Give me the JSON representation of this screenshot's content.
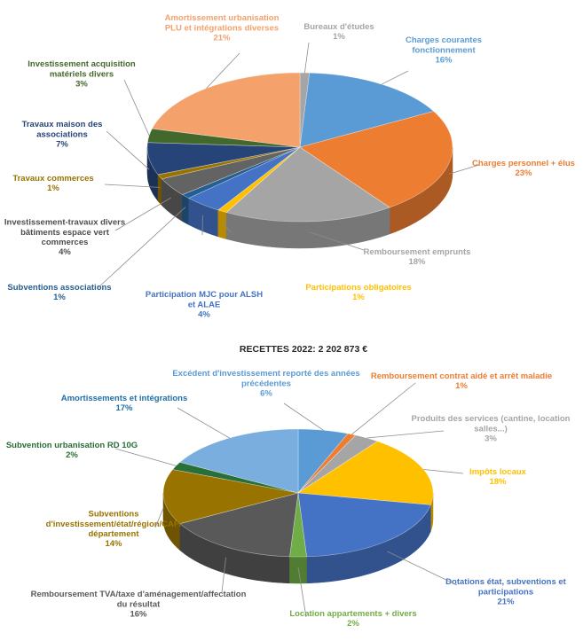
{
  "chart_data": [
    {
      "type": "pie",
      "title": "",
      "series": [
        {
          "name": "Bureaux d'études",
          "value": 1,
          "value_label": "1%",
          "color": "#a5a5a5"
        },
        {
          "name": "Charges courantes fonctionnement",
          "value": 16,
          "value_label": "16%",
          "color": "#5b9bd5"
        },
        {
          "name": "Charges personnel + élus",
          "value": 23,
          "value_label": "23%",
          "color": "#ed7d31"
        },
        {
          "name": "Remboursement emprunts",
          "value": 18,
          "value_label": "18%",
          "color": "#a5a5a5"
        },
        {
          "name": "Participations obligatoires",
          "value": 1,
          "value_label": "1%",
          "color": "#ffc000"
        },
        {
          "name": "Participation MJC pour ALSH et ALAE",
          "value": 4,
          "value_label": "4%",
          "color": "#4472c4"
        },
        {
          "name": "Subventions associations",
          "value": 1,
          "value_label": "1%",
          "color": "#255e91"
        },
        {
          "name": "Investissement-travaux divers bâtiments espace vert commerces",
          "value": 4,
          "value_label": "4%",
          "color": "#636363"
        },
        {
          "name": "Travaux commerces",
          "value": 1,
          "value_label": "1%",
          "color": "#997300"
        },
        {
          "name": "Travaux maison des associations",
          "value": 7,
          "value_label": "7%",
          "color": "#264478"
        },
        {
          "name": "Investissement acquisition matériels divers",
          "value": 3,
          "value_label": "3%",
          "color": "#43682b"
        },
        {
          "name": "Amortissement urbanisation PLU et intégrations diverses",
          "value": 21,
          "value_label": "21%",
          "color": "#f4a16b"
        }
      ]
    },
    {
      "type": "pie",
      "title": "RECETTES 2022: 2 202 873 €",
      "series": [
        {
          "name": "Excédent d'investissement reporté des années précédentes",
          "value": 6,
          "value_label": "6%",
          "color": "#5b9bd5"
        },
        {
          "name": "Remboursement contrat aidé et arrêt maladie",
          "value": 1,
          "value_label": "1%",
          "color": "#ed7d31"
        },
        {
          "name": "Produits des services (cantine, location salles...)",
          "value": 3,
          "value_label": "3%",
          "color": "#a5a5a5"
        },
        {
          "name": "Impôts locaux",
          "value": 18,
          "value_label": "18%",
          "color": "#ffc000"
        },
        {
          "name": "Dotations état, subventions et participations",
          "value": 21,
          "value_label": "21%",
          "color": "#4472c4"
        },
        {
          "name": "Location appartements + divers",
          "value": 2,
          "value_label": "2%",
          "color": "#70ad47"
        },
        {
          "name": "Remboursement TVA/taxe d'aménagement/affectation du résultat",
          "value": 16,
          "value_label": "16%",
          "color": "#595959"
        },
        {
          "name": "Subventions d'investissement/état/région/CAF/ département",
          "value": 14,
          "value_label": "14%",
          "color": "#997300"
        },
        {
          "name": "Subvention urbanisation RD 10G",
          "value": 2,
          "value_label": "2%",
          "color": "#2a6e38"
        },
        {
          "name": "Amortissements et intégrations",
          "value": 17,
          "value_label": "17%",
          "color": "#7aaede"
        }
      ]
    }
  ],
  "labels": {
    "c1": [
      {
        "lines": [
          "Bureaux d'études"
        ],
        "value": "1%",
        "color": "#a5a5a5"
      },
      {
        "lines": [
          "Charges courantes",
          "fonctionnement"
        ],
        "value": "16%",
        "color": "#5b9bd5"
      },
      {
        "lines": [
          "Charges personnel + élus"
        ],
        "value": "23%",
        "color": "#ed7d31"
      },
      {
        "lines": [
          "Remboursement emprunts"
        ],
        "value": "18%",
        "color": "#a5a5a5"
      },
      {
        "lines": [
          "Participations obligatoires"
        ],
        "value": "1%",
        "color": "#ffc000"
      },
      {
        "lines": [
          "Participation MJC pour ALSH",
          "et ALAE"
        ],
        "value": "4%",
        "color": "#4472c4"
      },
      {
        "lines": [
          "Subventions associations"
        ],
        "value": "1%",
        "color": "#255e91"
      },
      {
        "lines": [
          "Investissement-travaux divers",
          "bâtiments espace vert",
          "commerces"
        ],
        "value": "4%",
        "color": "#4d4d4d"
      },
      {
        "lines": [
          "Travaux commerces"
        ],
        "value": "1%",
        "color": "#997300"
      },
      {
        "lines": [
          "Travaux maison des",
          "associations"
        ],
        "value": "7%",
        "color": "#264478"
      },
      {
        "lines": [
          "Investissement acquisition",
          "matériels divers"
        ],
        "value": "3%",
        "color": "#43682b"
      },
      {
        "lines": [
          "Amortissement urbanisation",
          "PLU et intégrations diverses"
        ],
        "value": "21%",
        "color": "#f4a16b"
      }
    ],
    "c2": [
      {
        "lines": [
          "Excédent d'investissement reporté des années",
          "précédentes"
        ],
        "value": "6%",
        "color": "#5b9bd5"
      },
      {
        "lines": [
          "Remboursement contrat aidé et arrêt maladie"
        ],
        "value": "1%",
        "color": "#ed7d31"
      },
      {
        "lines": [
          "Produits des services (cantine, location",
          "salles...)"
        ],
        "value": "3%",
        "color": "#a5a5a5"
      },
      {
        "lines": [
          "Impôts locaux"
        ],
        "value": "18%",
        "color": "#ffc000"
      },
      {
        "lines": [
          "Dotations état, subventions et",
          "participations"
        ],
        "value": "21%",
        "color": "#4472c4"
      },
      {
        "lines": [
          "Location appartements + divers"
        ],
        "value": "2%",
        "color": "#70ad47"
      },
      {
        "lines": [
          "Remboursement TVA/taxe d'aménagement/affectation",
          "du résultat"
        ],
        "value": "16%",
        "color": "#595959"
      },
      {
        "lines": [
          "Subventions",
          "d'investissement/état/région/CAF/",
          "département"
        ],
        "value": "14%",
        "color": "#997300"
      },
      {
        "lines": [
          "Subvention urbanisation RD 10G"
        ],
        "value": "2%",
        "color": "#2a6e38"
      },
      {
        "lines": [
          "Amortissements et intégrations"
        ],
        "value": "17%",
        "color": "#1f6fa8"
      }
    ]
  }
}
